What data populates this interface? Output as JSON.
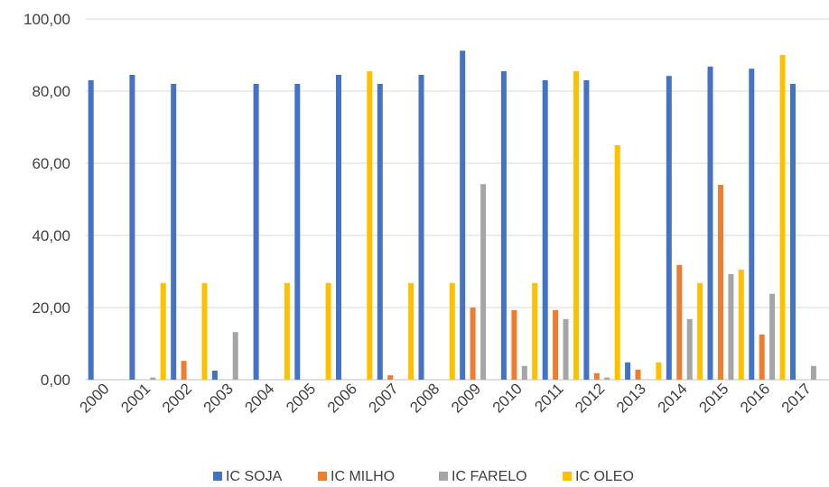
{
  "chart_data": {
    "type": "bar",
    "categories": [
      "2000",
      "2001",
      "2002",
      "2003",
      "2004",
      "2005",
      "2006",
      "2007",
      "2008",
      "2009",
      "2010",
      "2011",
      "2012",
      "2013",
      "2014",
      "2015",
      "2016",
      "2017"
    ],
    "series": [
      {
        "name": "IC SOJA",
        "color": "#4472C4",
        "values": [
          83,
          84.5,
          82,
          2.5,
          82,
          82,
          84.5,
          82,
          84.5,
          91.2,
          85.5,
          83,
          83,
          4.8,
          84.2,
          86.8,
          86.2,
          82
        ]
      },
      {
        "name": "IC MILHO",
        "color": "#ED7D31",
        "values": [
          0,
          0,
          5.2,
          0,
          0,
          0,
          0,
          1.2,
          0,
          20,
          19.3,
          19.3,
          1.8,
          2.8,
          31.8,
          54,
          12.5,
          0
        ]
      },
      {
        "name": "IC FARELO",
        "color": "#A5A5A5",
        "values": [
          0,
          0.6,
          0,
          13.2,
          0,
          0,
          0,
          0,
          0,
          54.2,
          3.8,
          16.8,
          0.6,
          0,
          16.8,
          29.3,
          23.8,
          3.8
        ]
      },
      {
        "name": "IC OLEO",
        "color": "#FFC000",
        "values": [
          0,
          26.8,
          26.8,
          0,
          26.8,
          26.8,
          85.5,
          26.8,
          26.8,
          0,
          26.8,
          85.5,
          65,
          4.8,
          26.8,
          30.5,
          90,
          0
        ]
      }
    ],
    "yticks": [
      "0,00",
      "20,00",
      "40,00",
      "60,00",
      "80,00",
      "100,00"
    ],
    "ylim": [
      0,
      100
    ],
    "grid": true,
    "legend": "bottom"
  }
}
